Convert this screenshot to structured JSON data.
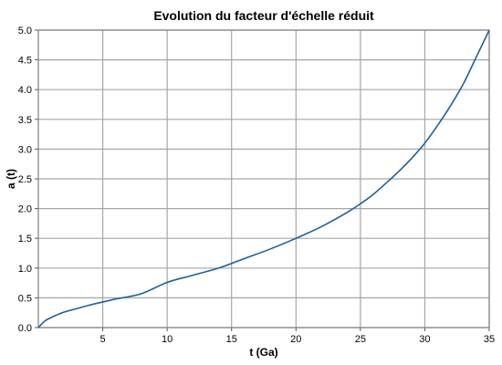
{
  "chart_data": {
    "type": "line",
    "title": "Evolution du facteur d'échelle réduit",
    "xlabel": "t (Ga)",
    "ylabel": "a (t)",
    "xlim": [
      0,
      35
    ],
    "ylim": [
      0,
      5
    ],
    "x_ticks": [
      5,
      10,
      15,
      20,
      25,
      30,
      35
    ],
    "y_ticks": [
      0.0,
      0.5,
      1.0,
      1.5,
      2.0,
      2.5,
      3.0,
      3.5,
      4.0,
      4.5,
      5.0
    ],
    "x_tick_labels": [
      "5",
      "10",
      "15",
      "20",
      "25",
      "30",
      "35"
    ],
    "y_tick_labels": [
      "0.0",
      "0.5",
      "1.0",
      "1.5",
      "2.0",
      "2.5",
      "3.0",
      "3.5",
      "4.0",
      "4.5",
      "5.0"
    ],
    "grid": true,
    "series": [
      {
        "color": "#1f5f99",
        "x": [
          0,
          0.5,
          1,
          2,
          3,
          4,
          5,
          6,
          8,
          10,
          12,
          14,
          16,
          18,
          20,
          22,
          24,
          25,
          26,
          27,
          28,
          29,
          30,
          31,
          32,
          33,
          34,
          35
        ],
        "y": [
          0.0,
          0.11,
          0.17,
          0.26,
          0.32,
          0.38,
          0.43,
          0.48,
          0.57,
          0.76,
          0.88,
          1.0,
          1.16,
          1.32,
          1.5,
          1.7,
          1.94,
          2.08,
          2.24,
          2.43,
          2.63,
          2.85,
          3.1,
          3.4,
          3.73,
          4.1,
          4.55,
          5.0
        ]
      }
    ]
  }
}
